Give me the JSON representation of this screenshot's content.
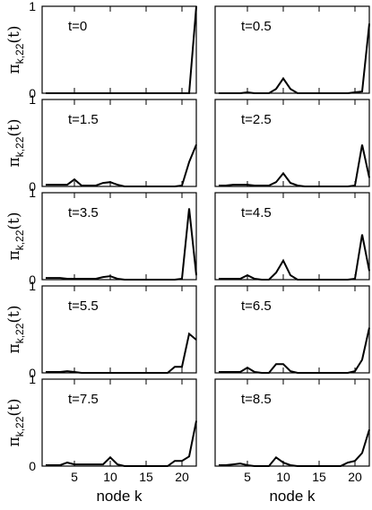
{
  "chart_data": {
    "type": "line",
    "layout": "5 rows x 2 columns of line panels",
    "ylabel": {
      "symbol": "π",
      "subscript": "k,22",
      "suffix": "(t)"
    },
    "xlabel": "node k",
    "xlim": [
      0.5,
      22
    ],
    "ylim": [
      0,
      1
    ],
    "x_ticks": [
      5,
      10,
      15,
      20
    ],
    "y_ticks": [
      0,
      1
    ],
    "x": [
      1,
      2,
      3,
      4,
      5,
      6,
      7,
      8,
      9,
      10,
      11,
      12,
      13,
      14,
      15,
      16,
      17,
      18,
      19,
      20,
      21,
      22
    ],
    "panels": [
      {
        "label": "t=0",
        "values": [
          0,
          0,
          0,
          0,
          0,
          0,
          0,
          0,
          0,
          0,
          0,
          0,
          0,
          0,
          0,
          0,
          0,
          0,
          0,
          0,
          0,
          1.0
        ]
      },
      {
        "label": "t=0.5",
        "values": [
          0,
          0,
          0,
          0,
          0.01,
          0,
          0,
          0,
          0.05,
          0.17,
          0.05,
          0,
          0,
          0,
          0,
          0,
          0,
          0,
          0,
          0.01,
          0.02,
          0.8
        ]
      },
      {
        "label": "t=1.5",
        "values": [
          0.02,
          0.02,
          0.02,
          0.02,
          0.08,
          0.01,
          0.01,
          0.01,
          0.04,
          0.05,
          0.02,
          0,
          0,
          0,
          0,
          0,
          0,
          0,
          0,
          0.01,
          0.28,
          0.48
        ]
      },
      {
        "label": "t=2.5",
        "values": [
          0.01,
          0.01,
          0.02,
          0.02,
          0.02,
          0.01,
          0.01,
          0.01,
          0.05,
          0.15,
          0.04,
          0.01,
          0,
          0,
          0,
          0,
          0,
          0,
          0,
          0.01,
          0.48,
          0.1
        ]
      },
      {
        "label": "t=3.5",
        "values": [
          0.02,
          0.02,
          0.02,
          0.01,
          0.01,
          0.01,
          0.01,
          0.01,
          0.03,
          0.04,
          0.01,
          0,
          0,
          0,
          0,
          0,
          0,
          0,
          0,
          0.01,
          0.82,
          0.05
        ]
      },
      {
        "label": "t=4.5",
        "values": [
          0.01,
          0.01,
          0.01,
          0.01,
          0.05,
          0.01,
          0,
          0,
          0.08,
          0.22,
          0.05,
          0,
          0,
          0,
          0,
          0,
          0,
          0,
          0,
          0.01,
          0.52,
          0.1
        ]
      },
      {
        "label": "t=5.5",
        "values": [
          0.01,
          0.01,
          0.01,
          0.02,
          0.01,
          0,
          0,
          0,
          0,
          0,
          0,
          0,
          0,
          0,
          0,
          0,
          0,
          0,
          0.07,
          0.07,
          0.45,
          0.38
        ]
      },
      {
        "label": "t=6.5",
        "values": [
          0.01,
          0.01,
          0.01,
          0.01,
          0.06,
          0.01,
          0,
          0,
          0.1,
          0.1,
          0.02,
          0,
          0,
          0,
          0,
          0,
          0,
          0,
          0,
          0.02,
          0.15,
          0.52
        ]
      },
      {
        "label": "t=7.5",
        "values": [
          0.01,
          0.01,
          0.01,
          0.04,
          0.02,
          0.02,
          0.02,
          0.02,
          0.02,
          0.1,
          0.02,
          0,
          0,
          0,
          0,
          0,
          0,
          0,
          0.06,
          0.06,
          0.11,
          0.52
        ]
      },
      {
        "label": "t=8.5",
        "values": [
          0.01,
          0.01,
          0.02,
          0.03,
          0.01,
          0,
          0,
          0,
          0.1,
          0.04,
          0.01,
          0,
          0,
          0,
          0,
          0,
          0,
          0,
          0.04,
          0.06,
          0.15,
          0.42
        ]
      }
    ],
    "grid": false,
    "legend": "none"
  }
}
